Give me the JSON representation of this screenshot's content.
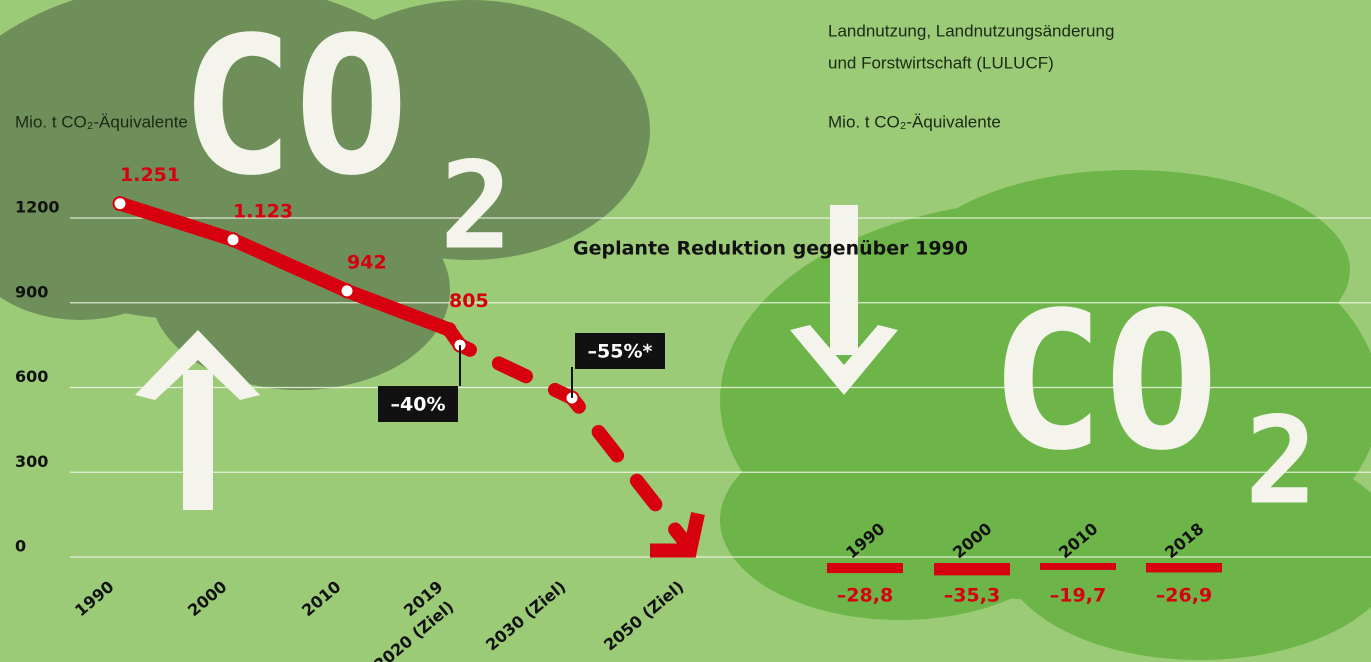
{
  "decor": {
    "co": "CO",
    "two": "2"
  },
  "chart_data": [
    {
      "type": "line",
      "y_label": "Mio. t CO₂-Äquivalente",
      "annotation": "Geplante Reduktion gegenüber 1990",
      "categories": [
        "1990",
        "2000",
        "2010",
        "2019",
        "2020 (Ziel)",
        "2030 (Ziel)",
        "2050 (Ziel)"
      ],
      "series": [
        {
          "name": null,
          "color": "#d7000f",
          "values": [
            1251,
            1123,
            942,
            805,
            null,
            null,
            null
          ],
          "value_labels": [
            "1.251",
            "1.123",
            "942",
            "805",
            null,
            null,
            null
          ]
        },
        {
          "name": null,
          "color": "#d7000f",
          "style": "dashed",
          "values": [
            null,
            null,
            null,
            805,
            750,
            563,
            30
          ]
        }
      ],
      "reduction_labels": [
        "–40%",
        "–55%*"
      ],
      "ylim": [
        0,
        1200
      ],
      "yticks": [
        0,
        300,
        600,
        900,
        1200
      ],
      "grid": true
    },
    {
      "type": "bar",
      "title": "Landnutzung, Landnutzungsänderung",
      "subtitle": "und Forstwirtschaft (LULUCF)",
      "y_label": "Mio. t CO₂-Äquivalente",
      "categories": [
        "1990",
        "2000",
        "2010",
        "2018"
      ],
      "values": [
        -28.8,
        -35.3,
        -19.7,
        -26.9
      ],
      "value_labels": [
        "–28,8",
        "–35,3",
        "–19,7",
        "–26,9"
      ],
      "color": "#d7000f",
      "ylim": [
        -40,
        0
      ]
    }
  ]
}
